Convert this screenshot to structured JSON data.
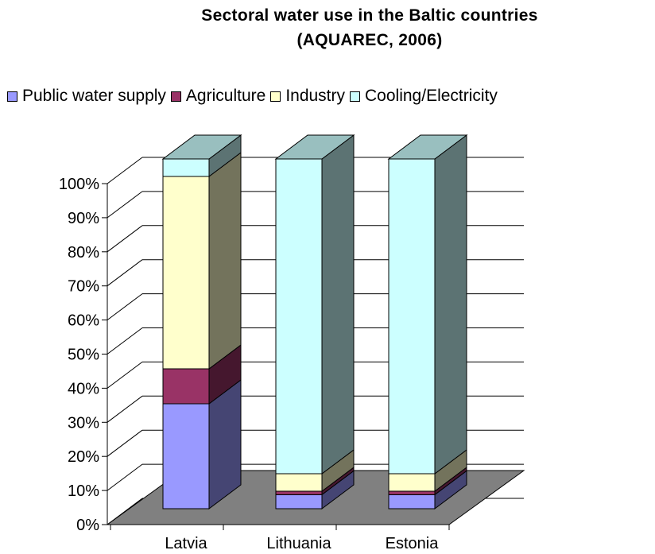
{
  "chart_data": {
    "type": "bar",
    "stacked": true,
    "percent": true,
    "three_d": true,
    "title": "Sectoral water use in the Baltic countries",
    "subtitle": "(AQUAREC, 2006)",
    "categories": [
      "Latvia",
      "Lithuania",
      "Estonia"
    ],
    "series": [
      {
        "name": "Public water supply",
        "values": [
          30,
          4,
          4
        ],
        "color": "#9999FF"
      },
      {
        "name": "Agriculture",
        "values": [
          10,
          1,
          1
        ],
        "color": "#993366"
      },
      {
        "name": "Industry",
        "values": [
          55,
          5,
          5
        ],
        "color": "#FFFFCC"
      },
      {
        "name": "Cooling/Electricity",
        "values": [
          5,
          90,
          90
        ],
        "color": "#CCFFFF"
      }
    ],
    "ylim": [
      0,
      100
    ],
    "yticks": [
      "0%",
      "10%",
      "20%",
      "30%",
      "40%",
      "50%",
      "60%",
      "70%",
      "80%",
      "90%",
      "100%"
    ],
    "grid": true,
    "legend_position": "top",
    "floor_color": "#808080"
  }
}
